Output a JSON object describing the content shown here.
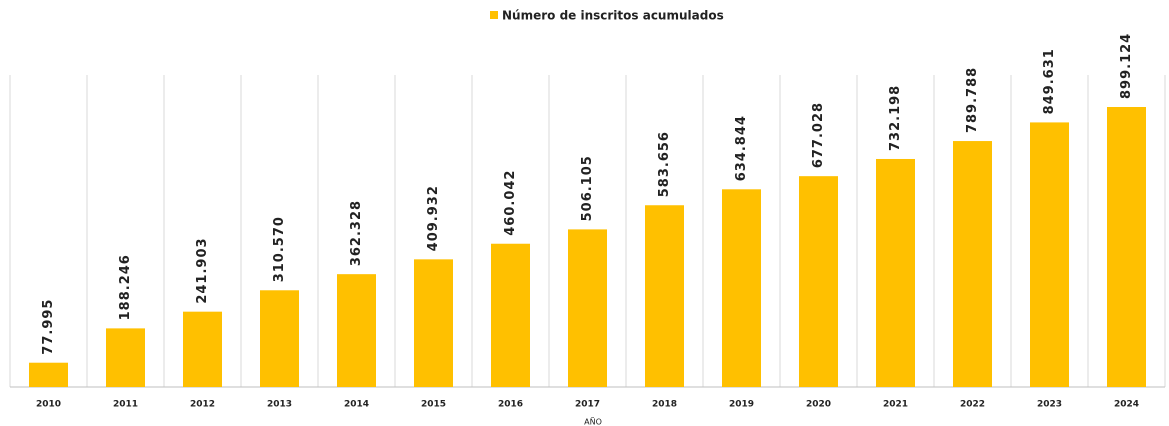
{
  "chart_data": {
    "type": "bar",
    "legend": "Número de inscritos acumulados",
    "x_label": "AÑO",
    "color": "#ffc000",
    "categories": [
      "2010",
      "2011",
      "2012",
      "2013",
      "2014",
      "2015",
      "2016",
      "2017",
      "2018",
      "2019",
      "2020",
      "2021",
      "2022",
      "2023",
      "2024"
    ],
    "values": [
      77995,
      188246,
      241903,
      310570,
      362328,
      409932,
      460042,
      506105,
      583656,
      634844,
      677028,
      732198,
      789788,
      849631,
      899124
    ],
    "value_labels": [
      "77.995",
      "188.246",
      "241.903",
      "310.570",
      "362.328",
      "409.932",
      "460.042",
      "506.105",
      "583.656",
      "634.844",
      "677.028",
      "732.198",
      "789.788",
      "849.631",
      "899.124"
    ],
    "grid": true
  }
}
